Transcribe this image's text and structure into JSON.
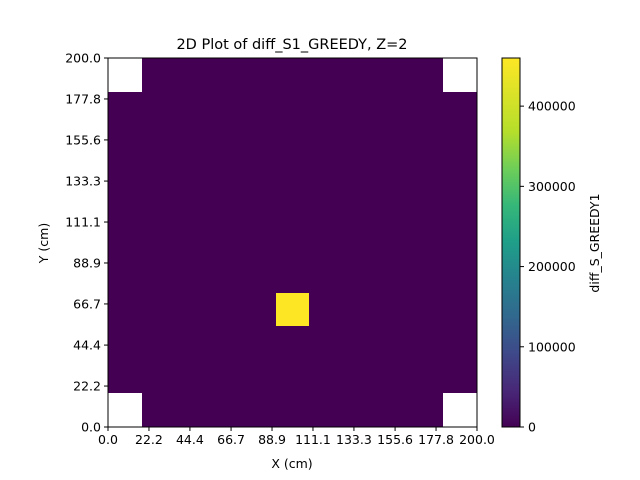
{
  "chart_data": {
    "type": "heatmap",
    "title": "2D Plot of diff_S1_GREEDY, Z=2",
    "xlabel": "X (cm)",
    "ylabel": "Y (cm)",
    "xlim": [
      0,
      200
    ],
    "ylim": [
      0,
      200
    ],
    "x_ticks": [
      "0.0",
      "22.2",
      "44.4",
      "66.7",
      "88.9",
      "111.1",
      "133.3",
      "155.6",
      "177.8",
      "200.0"
    ],
    "y_ticks": [
      "0.0",
      "22.2",
      "44.4",
      "66.7",
      "88.9",
      "111.1",
      "133.3",
      "155.6",
      "177.8",
      "200.0"
    ],
    "grid_size": [
      11,
      11
    ],
    "empty_cells": [
      [
        0,
        0
      ],
      [
        10,
        0
      ],
      [
        0,
        10
      ],
      [
        10,
        10
      ]
    ],
    "hot_cell": {
      "col": 5,
      "row": 3,
      "value": 460000
    },
    "base_value": 0,
    "colorbar": {
      "label": "diff_S_GREEDY1",
      "min": 0,
      "max": 460000,
      "ticks": [
        "0",
        "100000",
        "200000",
        "300000",
        "400000"
      ],
      "tick_values": [
        0,
        100000,
        200000,
        300000,
        400000
      ],
      "colormap": "viridis"
    },
    "colors": {
      "low": "#440154",
      "high": "#fde725",
      "empty": "#ffffff"
    },
    "grid": false
  }
}
